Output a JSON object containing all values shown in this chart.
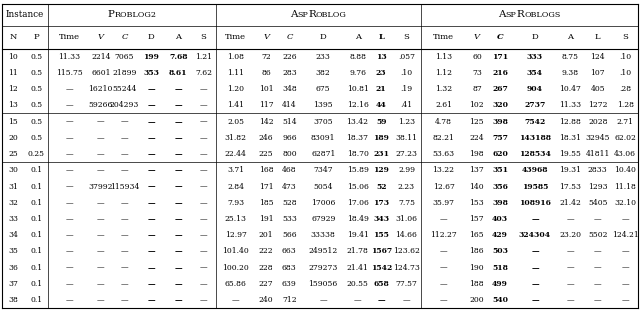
{
  "col_labels": [
    "N",
    "P",
    "Time",
    "V",
    "C",
    "D",
    "A",
    "S",
    "Time",
    "V",
    "C",
    "D",
    "A",
    "L",
    "S",
    "Time",
    "V",
    "C",
    "D",
    "A",
    "L",
    "S"
  ],
  "col_italic": [
    false,
    false,
    false,
    true,
    true,
    false,
    false,
    false,
    false,
    true,
    true,
    false,
    false,
    false,
    false,
    false,
    true,
    true,
    false,
    false,
    false,
    false
  ],
  "col_bold_header": [
    false,
    false,
    false,
    false,
    false,
    false,
    false,
    false,
    false,
    false,
    false,
    false,
    false,
    true,
    false,
    false,
    false,
    true,
    false,
    false,
    false,
    false
  ],
  "data_bold_cols": [
    5,
    6,
    13,
    17,
    18
  ],
  "groups": [
    {
      "label": "Instance",
      "start": 0,
      "end": 1
    },
    {
      "label": "PROBLOG2",
      "start": 2,
      "end": 7
    },
    {
      "label": "ASPROBLOG",
      "start": 8,
      "end": 14
    },
    {
      "label": "ASPROBLOGS",
      "start": 15,
      "end": 21
    }
  ],
  "group_small_caps": {
    "PROBLOG2": [
      [
        "P",
        7.5
      ],
      [
        "ROBLOG2",
        5.8
      ]
    ],
    "ASPROBLOG": [
      [
        "A",
        7.5
      ],
      [
        "SP",
        5.8
      ],
      [
        "R",
        7.5
      ],
      [
        "OBLOG",
        5.8
      ]
    ],
    "ASPROBLOGS": [
      [
        "A",
        7.5
      ],
      [
        "SP",
        5.8
      ],
      [
        "R",
        7.5
      ],
      [
        "OBLOGS",
        5.8
      ]
    ]
  },
  "raw_col_widths": [
    2.1,
    2.2,
    3.9,
    2.0,
    2.4,
    2.6,
    2.4,
    2.3,
    3.7,
    2.0,
    2.3,
    4.0,
    2.4,
    2.0,
    2.7,
    4.2,
    2.0,
    2.3,
    4.2,
    2.4,
    2.7,
    2.4
  ],
  "row_group_breaks": [
    6,
    9
  ],
  "rows": [
    [
      "10",
      "0.5",
      "11.33",
      "2214",
      "7065",
      "199",
      "7.68",
      "1.21",
      "1.08",
      "72",
      "226",
      "233",
      "8.88",
      "13",
      ".057",
      "1.13",
      "60",
      "171",
      "333",
      "8.75",
      "124",
      ".10"
    ],
    [
      "11",
      "0.5",
      "115.75",
      "6601",
      "21899",
      "353",
      "8.61",
      "7.62",
      "1.11",
      "86",
      "283",
      "382",
      "9.76",
      "23",
      ".10",
      "1.12",
      "73",
      "216",
      "354",
      "9.38",
      "107",
      ".10"
    ],
    [
      "12",
      "0.5",
      "—",
      "16210",
      "55244",
      "—",
      "—",
      "—",
      "1.20",
      "101",
      "348",
      "675",
      "10.81",
      "21",
      ".19",
      "1.32",
      "87",
      "267",
      "904",
      "10.47",
      "405",
      ".28"
    ],
    [
      "13",
      "0.5",
      "—",
      "59266",
      "204293",
      "—",
      "—",
      "—",
      "1.41",
      "117",
      "414",
      "1395",
      "12.16",
      "44",
      ".41",
      "2.61",
      "102",
      "320",
      "2737",
      "11.33",
      "1272",
      "1.28"
    ],
    [
      "15",
      "0.5",
      "—",
      "—",
      "—",
      "—",
      "—",
      "—",
      "2.05",
      "142",
      "514",
      "3705",
      "13.42",
      "59",
      "1.23",
      "4.78",
      "125",
      "398",
      "7542",
      "12.88",
      "2028",
      "2.71"
    ],
    [
      "20",
      "0.5",
      "—",
      "—",
      "—",
      "—",
      "—",
      "—",
      "31.82",
      "246",
      "966",
      "83091",
      "18.37",
      "189",
      "38.11",
      "82.21",
      "224",
      "757",
      "143188",
      "18.31",
      "32945",
      "62.02"
    ],
    [
      "25",
      "0.25",
      "—",
      "—",
      "—",
      "—",
      "—",
      "—",
      "22.44",
      "225",
      "800",
      "62871",
      "18.70",
      "231",
      "27.23",
      "53.63",
      "198",
      "620",
      "128534",
      "19.55",
      "41811",
      "43.06"
    ],
    [
      "30",
      "0.1",
      "—",
      "—",
      "—",
      "—",
      "—",
      "—",
      "3.71",
      "168",
      "468",
      "7347",
      "15.89",
      "129",
      "2.99",
      "13.22",
      "137",
      "351",
      "43968",
      "19.31",
      "2833",
      "10.40"
    ],
    [
      "31",
      "0.1",
      "—",
      "37992",
      "115934",
      "—",
      "—",
      "—",
      "2.84",
      "171",
      "473",
      "5054",
      "15.06",
      "52",
      "2.23",
      "12.67",
      "140",
      "356",
      "19585",
      "17.53",
      "1293",
      "11.18"
    ],
    [
      "32",
      "0.1",
      "—",
      "—",
      "—",
      "—",
      "—",
      "—",
      "7.93",
      "185",
      "528",
      "17006",
      "17.06",
      "173",
      "7.75",
      "35.97",
      "153",
      "398",
      "108916",
      "21.42",
      "5405",
      "32.10"
    ],
    [
      "33",
      "0.1",
      "—",
      "—",
      "—",
      "—",
      "—",
      "—",
      "25.13",
      "191",
      "533",
      "67929",
      "18.49",
      "343",
      "31.06",
      "—",
      "157",
      "403",
      "—",
      "—",
      "—",
      "—"
    ],
    [
      "34",
      "0.1",
      "—",
      "—",
      "—",
      "—",
      "—",
      "—",
      "12.97",
      "201",
      "566",
      "33338",
      "19.41",
      "155",
      "14.66",
      "112.27",
      "165",
      "429",
      "324304",
      "23.20",
      "5502",
      "124.21"
    ],
    [
      "35",
      "0.1",
      "—",
      "—",
      "—",
      "—",
      "—",
      "—",
      "101.40",
      "222",
      "663",
      "249512",
      "21.78",
      "1567",
      "123.62",
      "—",
      "186",
      "503",
      "—",
      "—",
      "—",
      "—"
    ],
    [
      "36",
      "0.1",
      "—",
      "—",
      "—",
      "—",
      "—",
      "—",
      "100.20",
      "228",
      "683",
      "279273",
      "21.41",
      "1542",
      "124.73",
      "—",
      "190",
      "518",
      "—",
      "—",
      "—",
      "—"
    ],
    [
      "37",
      "0.1",
      "—",
      "—",
      "—",
      "—",
      "—",
      "—",
      "65.86",
      "227",
      "639",
      "159056",
      "20.55",
      "658",
      "77.57",
      "—",
      "188",
      "499",
      "—",
      "—",
      "—",
      "—"
    ],
    [
      "38",
      "0.1",
      "—",
      "—",
      "—",
      "—",
      "—",
      "—",
      "—",
      "240",
      "712",
      "—",
      "—",
      "—",
      "—",
      "—",
      "200",
      "540",
      "—",
      "—",
      "—",
      "—"
    ]
  ]
}
